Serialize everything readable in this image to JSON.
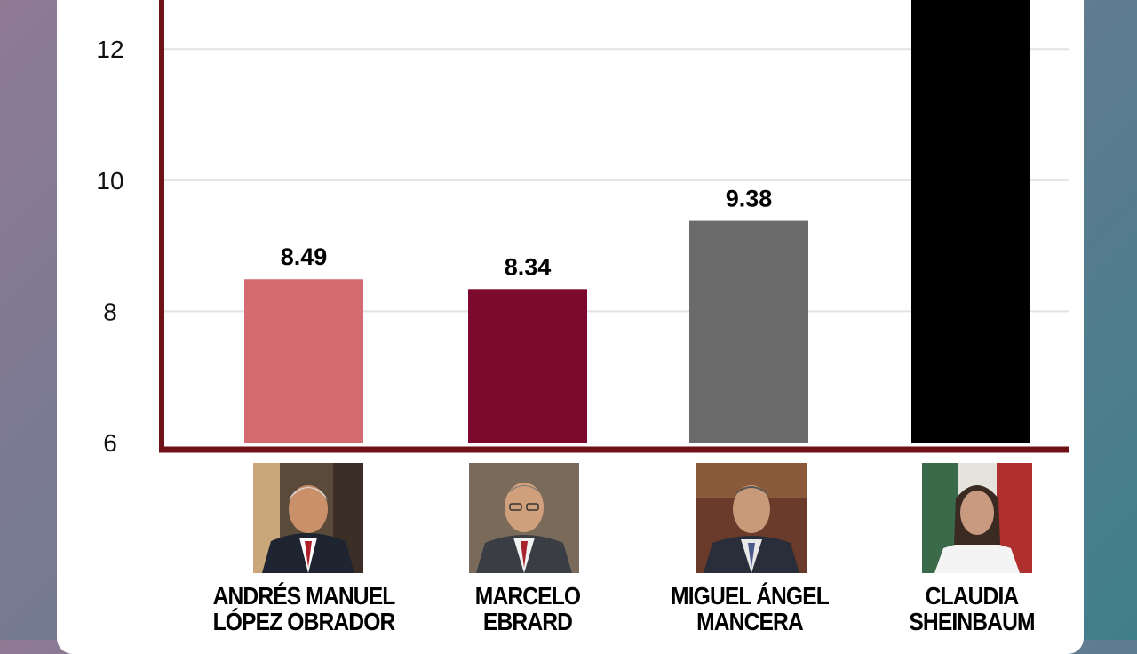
{
  "chart_data": {
    "type": "bar",
    "categories": [
      "ANDRÉS MANUEL LÓPEZ OBRADOR",
      "MARCELO EBRARD",
      "MIGUEL ÁNGEL MANCERA",
      "CLAUDIA SHEINBAUM"
    ],
    "values": [
      8.49,
      8.34,
      9.38,
      null
    ],
    "value_labels": [
      "8.49",
      "8.34",
      "9.38",
      ""
    ],
    "bar_colors": [
      "#d36b70",
      "#7d0a2e",
      "#6b6b6b",
      "#000000"
    ],
    "yticks": [
      "6",
      "8",
      "10",
      "12"
    ],
    "ylim_visible": [
      6,
      12.6
    ],
    "grid": true,
    "axis_color": "#6e1217",
    "grid_color": "#e2e2e2"
  },
  "candidates": [
    {
      "line1": "ANDRÉS MANUEL",
      "line2": "LÓPEZ OBRADOR"
    },
    {
      "line1": "MARCELO",
      "line2": "EBRARD"
    },
    {
      "line1": "MIGUEL ÁNGEL",
      "line2": "MANCERA"
    },
    {
      "line1": "CLAUDIA",
      "line2": "SHEINBAUM"
    }
  ]
}
